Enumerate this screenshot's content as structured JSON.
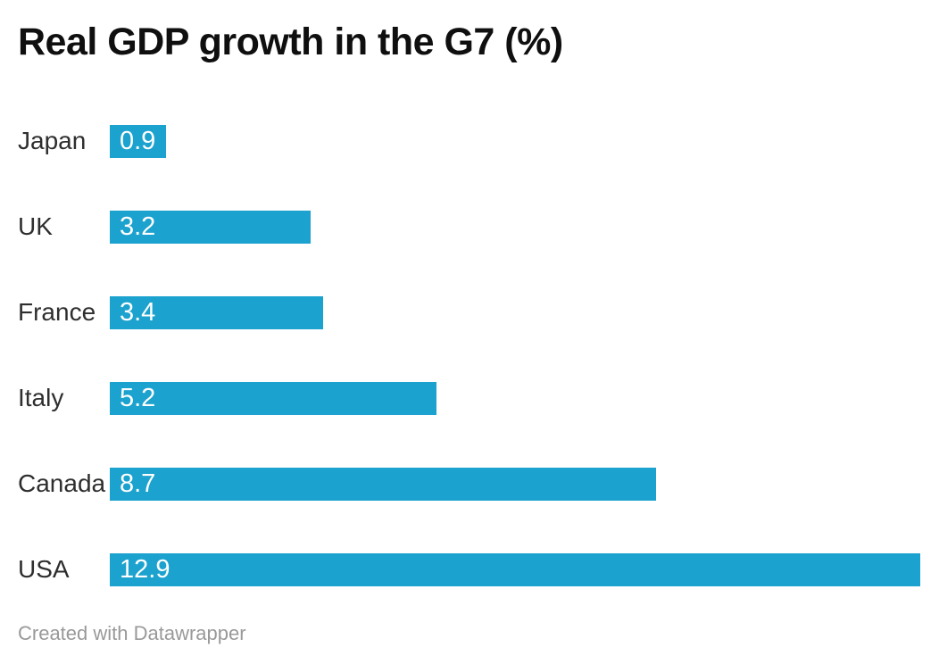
{
  "chart": {
    "title": "Real GDP growth in the G7 (%)",
    "footer": "Created with Datawrapper",
    "bar_color": "#1CA2CE",
    "title_color": "#0f0f0f",
    "label_color": "#2e2e2e",
    "value_label_color": "#ffffff",
    "footer_color": "#999999"
  },
  "chart_data": {
    "type": "bar",
    "orientation": "horizontal",
    "title": "Real GDP growth in the G7 (%)",
    "categories": [
      "Japan",
      "UK",
      "France",
      "Italy",
      "Canada",
      "USA"
    ],
    "values": [
      0.9,
      3.2,
      3.4,
      5.2,
      8.7,
      12.9
    ],
    "xlabel": "",
    "ylabel": "",
    "xlim": [
      0,
      12.9
    ],
    "grid": false,
    "legend": false,
    "value_labels": "inside-bar-start",
    "footer": "Created with Datawrapper"
  }
}
